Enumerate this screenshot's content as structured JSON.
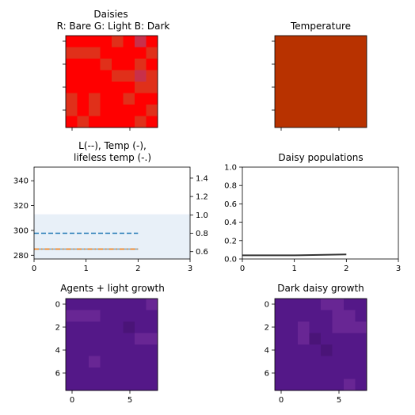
{
  "chart_data": [
    {
      "type": "heatmap",
      "title": "Daisies",
      "subtitle": "R: Bare G: Light B: Dark",
      "grid": [
        [
          0,
          0,
          0,
          0,
          1,
          0,
          2,
          0
        ],
        [
          1,
          1,
          1,
          0,
          0,
          0,
          0,
          1
        ],
        [
          0,
          0,
          0,
          1,
          0,
          0,
          1,
          0
        ],
        [
          0,
          0,
          0,
          0,
          1,
          1,
          2,
          1
        ],
        [
          0,
          0,
          0,
          0,
          0,
          0,
          1,
          1
        ],
        [
          1,
          0,
          1,
          0,
          0,
          1,
          0,
          0
        ],
        [
          1,
          0,
          1,
          0,
          0,
          0,
          0,
          1
        ],
        [
          0,
          1,
          0,
          0,
          0,
          0,
          1,
          0
        ]
      ],
      "colors": {
        "0": "#ff0000",
        "1": "#e0301a",
        "2": "#c8304a"
      },
      "axes": {
        "xticks": [
          "",
          ""
        ],
        "yticks": [
          "",
          "",
          "",
          ""
        ]
      }
    },
    {
      "type": "heatmap",
      "title": "Temperature",
      "fill": "#b83200",
      "axes": {
        "xticks": [
          "",
          ""
        ],
        "yticks": [
          "",
          "",
          "",
          ""
        ]
      }
    },
    {
      "type": "line",
      "title": "L(--), Temp (-),",
      "subtitle": "lifeless temp (-.)",
      "xlim": [
        0,
        3
      ],
      "ylim": [
        277,
        351
      ],
      "y2lim": [
        0.52,
        1.52
      ],
      "xticks": [
        "0",
        "1",
        "2",
        "3"
      ],
      "yticks": [
        "280",
        "300",
        "320",
        "340"
      ],
      "y2ticks": [
        "0.6",
        "0.8",
        "1.0",
        "1.2",
        "1.4"
      ],
      "band": {
        "y_from": 277,
        "y_to": 313,
        "color": "#e8f0f8"
      },
      "series": [
        {
          "axis": "right",
          "style": "dashed",
          "color": "#1f77b4",
          "x": [
            0,
            1,
            2
          ],
          "y": [
            0.8,
            0.8,
            0.8
          ]
        },
        {
          "axis": "left",
          "style": "solid",
          "color": "#7aa0b8",
          "x": [
            0,
            1,
            2
          ],
          "y": [
            285,
            285,
            285
          ]
        },
        {
          "axis": "left",
          "style": "dashdot",
          "color": "#ff7f0e",
          "x": [
            0,
            1,
            2
          ],
          "y": [
            285,
            285,
            285
          ]
        }
      ]
    },
    {
      "type": "line",
      "title": "Daisy populations",
      "xlim": [
        0,
        3
      ],
      "ylim": [
        0,
        1
      ],
      "xticks": [
        "0",
        "1",
        "2",
        "3"
      ],
      "yticks": [
        "0.0",
        "0.2",
        "0.4",
        "0.6",
        "0.8",
        "1.0"
      ],
      "series": [
        {
          "style": "solid",
          "color": "#333333",
          "x": [
            0,
            1,
            2
          ],
          "y": [
            0.04,
            0.04,
            0.05
          ]
        }
      ]
    },
    {
      "type": "heatmap",
      "title": "Agents + light growth",
      "grid": [
        [
          1,
          1,
          1,
          1,
          1,
          1,
          1,
          2
        ],
        [
          2,
          2,
          2,
          1,
          1,
          1,
          1,
          1
        ],
        [
          1,
          1,
          1,
          1,
          1,
          0,
          1,
          1
        ],
        [
          1,
          1,
          1,
          1,
          1,
          1,
          2,
          2
        ],
        [
          1,
          1,
          1,
          1,
          1,
          1,
          1,
          1
        ],
        [
          1,
          1,
          2,
          1,
          1,
          1,
          1,
          1
        ],
        [
          1,
          1,
          1,
          1,
          1,
          1,
          1,
          1
        ],
        [
          1,
          1,
          1,
          1,
          1,
          1,
          1,
          1
        ]
      ],
      "colors": {
        "0": "#4a1478",
        "1": "#541888",
        "2": "#682694"
      },
      "axes": {
        "xticks": [
          "0",
          "5"
        ],
        "yticks": [
          "0",
          "2",
          "4",
          "6"
        ]
      }
    },
    {
      "type": "heatmap",
      "title": "Dark daisy growth",
      "grid": [
        [
          1,
          1,
          1,
          1,
          2,
          2,
          1,
          1
        ],
        [
          1,
          1,
          1,
          1,
          1,
          2,
          2,
          1
        ],
        [
          1,
          1,
          2,
          1,
          1,
          2,
          2,
          2
        ],
        [
          1,
          1,
          2,
          0,
          1,
          1,
          1,
          1
        ],
        [
          1,
          1,
          1,
          1,
          0,
          1,
          1,
          1
        ],
        [
          1,
          1,
          1,
          1,
          1,
          1,
          1,
          1
        ],
        [
          1,
          1,
          1,
          1,
          1,
          1,
          1,
          1
        ],
        [
          1,
          1,
          1,
          1,
          1,
          1,
          2,
          1
        ]
      ],
      "colors": {
        "0": "#4a1478",
        "1": "#541888",
        "2": "#682694"
      },
      "axes": {
        "xticks": [
          "0",
          "5"
        ],
        "yticks": [
          "0",
          "2",
          "4",
          "6"
        ]
      }
    }
  ]
}
